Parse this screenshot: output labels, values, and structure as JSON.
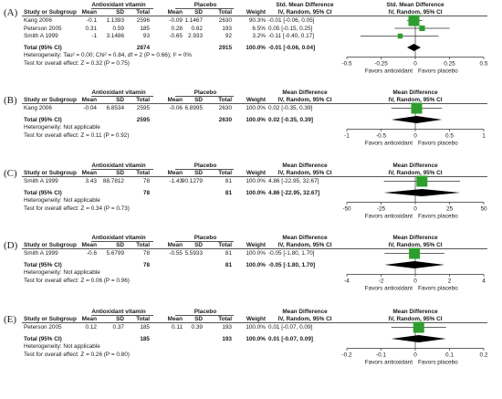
{
  "panels": [
    {
      "label": "(A)",
      "exp_label": "Antioxidant vitamin",
      "ctl_label": "Placebo",
      "effect_header": "Std. Mean Difference",
      "effect_method": "IV, Random, 95% CI",
      "cols": {
        "study": "Study or Subgroup",
        "mean": "Mean",
        "sd": "SD",
        "total": "Total",
        "weight": "Weight"
      },
      "studies": [
        {
          "name": "Kang 2006",
          "e_mean": "-0.1",
          "e_sd": "1.1393",
          "e_total": "2596",
          "c_mean": "-0.09",
          "c_sd": "1.1467",
          "c_total": "2630",
          "weight": "90.3%",
          "ci_text": "-0.01 [-0.06, 0.05]",
          "est": -0.01,
          "lo": -0.06,
          "hi": 0.05,
          "w": 90.3
        },
        {
          "name": "Peterson 2005",
          "e_mean": "0.31",
          "e_sd": "0.59",
          "e_total": "185",
          "c_mean": "0.28",
          "c_sd": "0.62",
          "c_total": "193",
          "weight": "6.5%",
          "ci_text": "0.05 [-0.15, 0.25]",
          "est": 0.05,
          "lo": -0.15,
          "hi": 0.25,
          "w": 6.5
        },
        {
          "name": "Smith A 1999",
          "e_mean": "-1",
          "e_sd": "3.1486",
          "e_total": "93",
          "c_mean": "-0.65",
          "c_sd": "2.933",
          "c_total": "92",
          "weight": "3.2%",
          "ci_text": "-0.11 [-0.40, 0.17]",
          "est": -0.11,
          "lo": -0.4,
          "hi": 0.17,
          "w": 3.2
        }
      ],
      "total": {
        "label": "Total (95% CI)",
        "e_total": "2874",
        "c_total": "2915",
        "weight": "100.0%",
        "ci_text": "-0.01 [-0.06, 0.04]",
        "est": -0.01,
        "lo": -0.06,
        "hi": 0.04
      },
      "heterogeneity": "Heterogeneity: Tau² = 0.00; Chi² = 0.84, df = 2 (P = 0.66); I² = 0%",
      "overall_effect": "Test for overall effect: Z = 0.32 (P = 0.75)",
      "axis": {
        "min": -0.5,
        "max": 0.5,
        "ticks": [
          "-0.5",
          "-0.25",
          "0",
          "0.25",
          "0.5"
        ]
      },
      "favors_left": "Favors antioxidant",
      "favors_right": "Favors placebo"
    },
    {
      "label": "(B)",
      "exp_label": "Antioxidant vitamin",
      "ctl_label": "Placebo",
      "effect_header": "Mean Difference",
      "effect_method": "IV, Random, 95% CI",
      "cols": {
        "study": "Study or Subgroup",
        "mean": "Mean",
        "sd": "SD",
        "total": "Total",
        "weight": "Weight"
      },
      "studies": [
        {
          "name": "Kang 2006",
          "e_mean": "-0.04",
          "e_sd": "6.8534",
          "e_total": "2595",
          "c_mean": "-0.06",
          "c_sd": "6.8995",
          "c_total": "2630",
          "weight": "100.0%",
          "ci_text": "0.02 [-0.35, 0.39]",
          "est": 0.02,
          "lo": -0.35,
          "hi": 0.39,
          "w": 100.0
        }
      ],
      "total": {
        "label": "Total (95% CI)",
        "e_total": "2595",
        "c_total": "2630",
        "weight": "100.0%",
        "ci_text": "0.02 [-0.35, 0.39]",
        "est": 0.02,
        "lo": -0.35,
        "hi": 0.39
      },
      "heterogeneity": "Heterogeneity: Not applicable",
      "overall_effect": "Test for overall effect: Z = 0.11 (P = 0.92)",
      "axis": {
        "min": -1,
        "max": 1,
        "ticks": [
          "-1",
          "-0.5",
          "0",
          "0.5",
          "1"
        ]
      },
      "favors_left": "Favors antioxidant",
      "favors_right": "Favors placebo"
    },
    {
      "label": "(C)",
      "exp_label": "Antioxidant vitamin",
      "ctl_label": "Placebo",
      "effect_header": "Mean Difference",
      "effect_method": "IV, Random, 95% CI",
      "cols": {
        "study": "Study or Subgroup",
        "mean": "Mean",
        "sd": "SD",
        "total": "Total",
        "weight": "Weight"
      },
      "studies": [
        {
          "name": "Smith A 1999",
          "e_mean": "3.43",
          "e_sd": "88.7812",
          "e_total": "78",
          "c_mean": "-1.43",
          "c_sd": "90.1279",
          "c_total": "81",
          "weight": "100.0%",
          "ci_text": "4.86 [-22.95, 32.67]",
          "est": 4.86,
          "lo": -22.95,
          "hi": 32.67,
          "w": 100.0
        }
      ],
      "total": {
        "label": "Total (95% CI)",
        "e_total": "78",
        "c_total": "81",
        "weight": "100.0%",
        "ci_text": "4.86 [-22.95, 32.67]",
        "est": 4.86,
        "lo": -22.95,
        "hi": 32.67
      },
      "heterogeneity": "Heterogeneity: Not applicable",
      "overall_effect": "Test for overall effect: Z = 0.34 (P = 0.73)",
      "axis": {
        "min": -50,
        "max": 50,
        "ticks": [
          "-50",
          "-25",
          "0",
          "25",
          "50"
        ]
      },
      "favors_left": "Favors antioxidant",
      "favors_right": "Favors placebo"
    },
    {
      "label": "(D)",
      "exp_label": "Antioxidant vitamin",
      "ctl_label": "Placebo",
      "effect_header": "Mean Difference",
      "effect_method": "IV, Random, 95% CI",
      "cols": {
        "study": "Study or Subgroup",
        "mean": "Mean",
        "sd": "SD",
        "total": "Total",
        "weight": "Weight"
      },
      "studies": [
        {
          "name": "Smith A 1999",
          "e_mean": "-0.6",
          "e_sd": "5.6799",
          "e_total": "78",
          "c_mean": "-0.55",
          "c_sd": "5.5933",
          "c_total": "81",
          "weight": "100.0%",
          "ci_text": "-0.05 [-1.80, 1.70]",
          "est": -0.05,
          "lo": -1.8,
          "hi": 1.7,
          "w": 100.0
        }
      ],
      "total": {
        "label": "Total (95% CI)",
        "e_total": "78",
        "c_total": "81",
        "weight": "100.0%",
        "ci_text": "-0.05 [-1.80, 1.70]",
        "est": -0.05,
        "lo": -1.8,
        "hi": 1.7
      },
      "heterogeneity": "Heterogeneity: Not applicable",
      "overall_effect": "Test for overall effect: Z = 0.06 (P = 0.96)",
      "axis": {
        "min": -4,
        "max": 4,
        "ticks": [
          "-4",
          "-2",
          "0",
          "2",
          "4"
        ]
      },
      "favors_left": "Favors antioxidant",
      "favors_right": "Favors placebo"
    },
    {
      "label": "(E)",
      "exp_label": "Antioxidant vitamin",
      "ctl_label": "Placebo",
      "effect_header": "Mean Difference",
      "effect_method": "IV, Random, 95% CI",
      "cols": {
        "study": "Study or Subgroup",
        "mean": "Mean",
        "sd": "SD",
        "total": "Total",
        "weight": "Weight"
      },
      "studies": [
        {
          "name": "Peterson 2005",
          "e_mean": "0.12",
          "e_sd": "0.37",
          "e_total": "185",
          "c_mean": "0.11",
          "c_sd": "0.39",
          "c_total": "193",
          "weight": "100.0%",
          "ci_text": "0.01 [-0.07, 0.09]",
          "est": 0.01,
          "lo": -0.07,
          "hi": 0.09,
          "w": 100.0
        }
      ],
      "total": {
        "label": "Total (95% CI)",
        "e_total": "185",
        "c_total": "193",
        "weight": "100.0%",
        "ci_text": "0.01 [-0.07, 0.09]",
        "est": 0.01,
        "lo": -0.07,
        "hi": 0.09
      },
      "heterogeneity": "Heterogeneity: Not applicable",
      "overall_effect": "Test for overall effect: Z = 0.26 (P = 0.80)",
      "axis": {
        "min": -0.2,
        "max": 0.2,
        "ticks": [
          "-0.2",
          "-0.1",
          "0",
          "0.1",
          "0.2"
        ]
      },
      "favors_left": "Favors antioxidant",
      "favors_right": "Favors placebo"
    }
  ],
  "colors": {
    "box": "#2e9e2e",
    "diamond": "#000000",
    "line": "#333333",
    "highlight_pink": "#ff9fe6",
    "highlight_cyan": "#7fe8e8"
  },
  "chart_data": [
    {
      "type": "forest",
      "panel": "(A)",
      "measure": "Std. Mean Difference",
      "categories": [
        "Kang 2006",
        "Peterson 2005",
        "Smith A 1999",
        "Total (95% CI)"
      ],
      "values": [
        -0.01,
        0.05,
        -0.11,
        -0.01
      ],
      "ci_low": [
        -0.06,
        -0.15,
        -0.4,
        -0.06
      ],
      "ci_high": [
        0.05,
        0.25,
        0.17,
        0.04
      ],
      "xlim": [
        -0.5,
        0.5
      ]
    },
    {
      "type": "forest",
      "panel": "(B)",
      "measure": "Mean Difference",
      "categories": [
        "Kang 2006",
        "Total (95% CI)"
      ],
      "values": [
        0.02,
        0.02
      ],
      "ci_low": [
        -0.35,
        -0.35
      ],
      "ci_high": [
        0.39,
        0.39
      ],
      "xlim": [
        -1,
        1
      ]
    },
    {
      "type": "forest",
      "panel": "(C)",
      "measure": "Mean Difference",
      "categories": [
        "Smith A 1999",
        "Total (95% CI)"
      ],
      "values": [
        4.86,
        4.86
      ],
      "ci_low": [
        -22.95,
        -22.95
      ],
      "ci_high": [
        32.67,
        32.67
      ],
      "xlim": [
        -50,
        50
      ]
    },
    {
      "type": "forest",
      "panel": "(D)",
      "measure": "Mean Difference",
      "categories": [
        "Smith A 1999",
        "Total (95% CI)"
      ],
      "values": [
        -0.05,
        -0.05
      ],
      "ci_low": [
        -1.8,
        -1.8
      ],
      "ci_high": [
        1.7,
        1.7
      ],
      "xlim": [
        -4,
        4
      ]
    },
    {
      "type": "forest",
      "panel": "(E)",
      "measure": "Mean Difference",
      "categories": [
        "Peterson 2005",
        "Total (95% CI)"
      ],
      "values": [
        0.01,
        0.01
      ],
      "ci_low": [
        -0.07,
        -0.07
      ],
      "ci_high": [
        0.09,
        0.09
      ],
      "xlim": [
        -0.2,
        0.2
      ]
    }
  ]
}
